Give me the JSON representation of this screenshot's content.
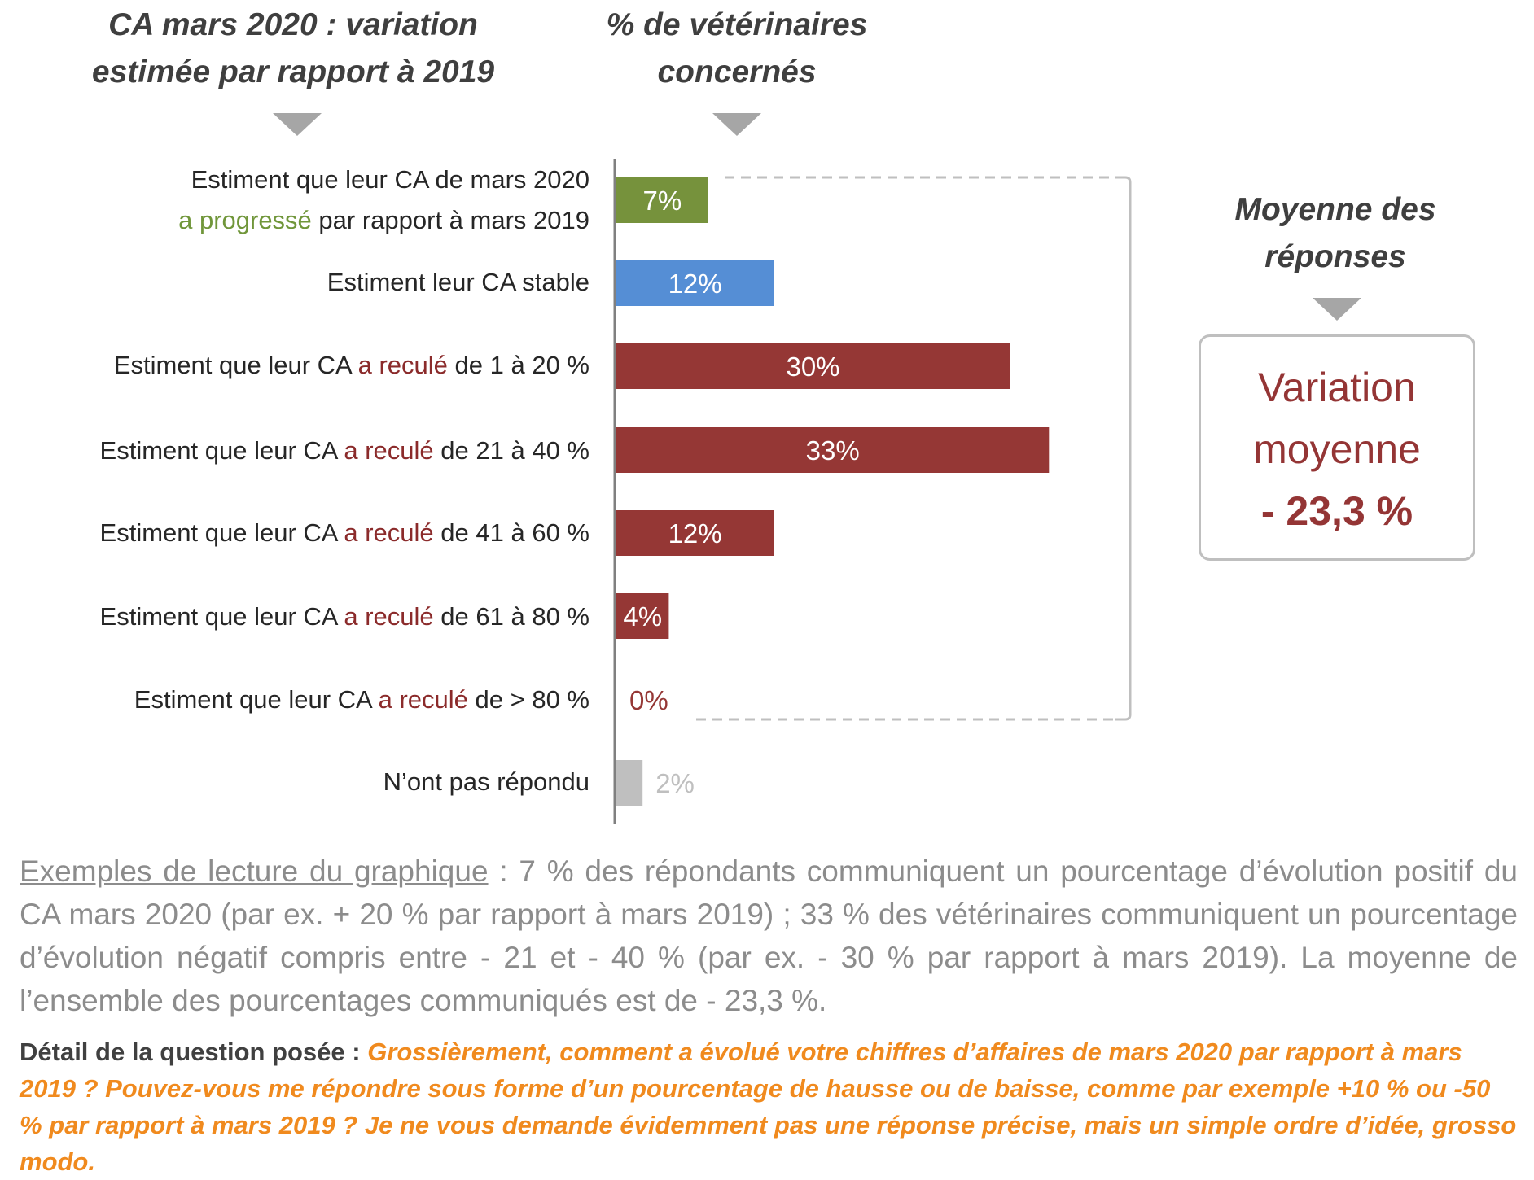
{
  "headers": {
    "left_line1": "CA mars 2020 : variation",
    "left_line2": "estimée par rapport à 2019",
    "middle_line1": "% de vétérinaires",
    "middle_line2": "concernés",
    "right_line1": "Moyenne des",
    "right_line2": "réponses"
  },
  "categories": [
    {
      "line1": "Estiment que leur CA de mars 2020",
      "pre": "",
      "accent": "a progressé",
      "post": " par rapport à mars 2019",
      "accent_color": "green"
    },
    {
      "pre": "Estiment leur CA stable",
      "accent": "",
      "post": ""
    },
    {
      "pre": "Estiment que leur CA ",
      "accent": "a reculé",
      "post": " de 1 à 20 %"
    },
    {
      "pre": "Estiment que leur CA ",
      "accent": "a reculé",
      "post": " de 21 à 40 %"
    },
    {
      "pre": "Estiment que leur CA ",
      "accent": "a reculé",
      "post": " de 41 à 60 %"
    },
    {
      "pre": "Estiment que leur CA ",
      "accent": "a reculé",
      "post": " de 61 à 80 %"
    },
    {
      "pre": "Estiment que leur CA ",
      "accent": "a reculé",
      "post": " de > 80 %"
    },
    {
      "pre": "N’ont pas répondu",
      "accent": "",
      "post": ""
    }
  ],
  "chart_data": {
    "type": "bar",
    "orientation": "horizontal",
    "values": [
      7,
      12,
      30,
      33,
      12,
      4,
      0,
      2
    ],
    "value_labels": [
      "7%",
      "12%",
      "30%",
      "33%",
      "12%",
      "4%",
      "0%",
      "2%"
    ],
    "colors": [
      "#76923c",
      "#558ed5",
      "#953735",
      "#953735",
      "#953735",
      "#953735",
      "#953735",
      "#bfbfbf"
    ],
    "label_colors": [
      "#ffffff",
      "#ffffff",
      "#ffffff",
      "#ffffff",
      "#ffffff",
      "#ffffff",
      "#953735",
      "#bfbfbf"
    ],
    "xlim": [
      0,
      35
    ],
    "grid": false
  },
  "average_box": {
    "line1": "Variation",
    "line2": "moyenne",
    "value": "- 23,3 %"
  },
  "reading": {
    "title": "Exemples de lecture du graphique",
    "text": " : 7 % des répondants communiquent un pourcentage d’évolution positif du CA mars 2020 (par ex. + 20 % par rapport à mars 2019) ; 33 % des vétérinaires communiquent un pourcentage d’évolution négatif compris entre - 21 et - 40 % (par ex. - 30 % par rapport à mars 2019). La moyenne de l’ensemble des pourcentages communiqués est de - 23,3 %."
  },
  "question": {
    "lead": "Détail de la question posée : ",
    "text": "Grossièrement, comment a évolué votre chiffres d’affaires de mars 2020 par rapport à mars 2019 ? Pouvez-vous me répondre sous forme d’un pourcentage de hausse ou de baisse, comme par exemple +10 % ou -50 % par rapport à mars 2019 ? Je ne vous demande évidemment pas une réponse précise, mais un simple ordre d’idée, grosso modo."
  }
}
